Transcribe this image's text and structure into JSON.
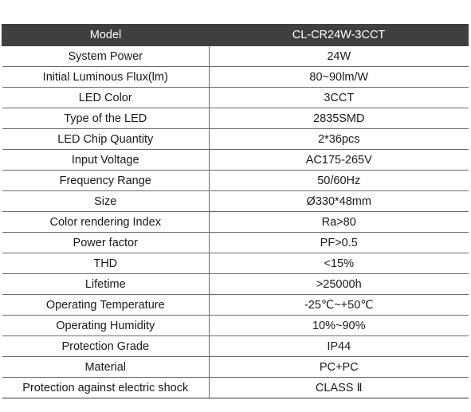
{
  "header": {
    "param_label": "Model",
    "value_label": "CL-CR24W-3CCT"
  },
  "rows": [
    {
      "name": "System Power",
      "value": "24W"
    },
    {
      "name": "Initial Luminous Flux(lm)",
      "value": "80~90lm/W"
    },
    {
      "name": "LED Color",
      "value": "3CCT"
    },
    {
      "name": "Type of the LED",
      "value": "2835SMD"
    },
    {
      "name": "LED Chip Quantity",
      "value": "2*36pcs"
    },
    {
      "name": "Input Voltage",
      "value": "AC175-265V"
    },
    {
      "name": "Frequency Range",
      "value": "50/60Hz"
    },
    {
      "name": "Size",
      "value": "Ø330*48mm"
    },
    {
      "name": "Color rendering Index",
      "value": "Ra>80"
    },
    {
      "name": "Power factor",
      "value": "PF>0.5"
    },
    {
      "name": "THD",
      "value": "<15%"
    },
    {
      "name": "Lifetime",
      "value": ">25000h"
    },
    {
      "name": "Operating Temperature",
      "value": "-25℃~+50℃"
    },
    {
      "name": "Operating Humidity",
      "value": "10%~90%"
    },
    {
      "name": "Protection Grade",
      "value": "IP44"
    },
    {
      "name": "Material",
      "value": "PC+PC"
    },
    {
      "name": "Protection against electric shock",
      "value": "CLASS Ⅱ"
    }
  ]
}
